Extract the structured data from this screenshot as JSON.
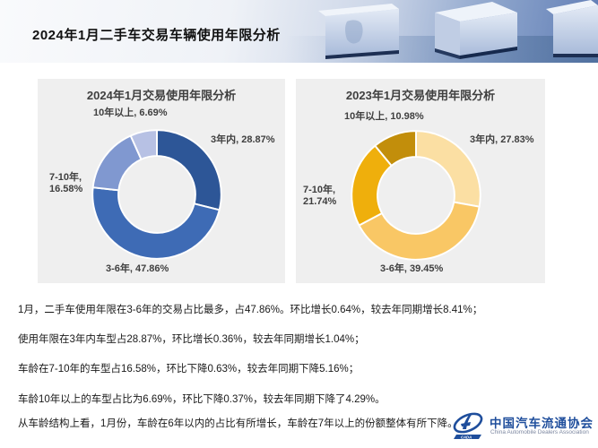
{
  "header": {
    "title": "2024年1月二手车交易车辆使用年限分析"
  },
  "chart_data": [
    {
      "type": "pie",
      "subtype": "donut",
      "title": "2024年1月交易使用年限分析",
      "categories": [
        "3年内",
        "3-6年",
        "7-10年",
        "10年以上"
      ],
      "values": [
        28.87,
        47.86,
        16.58,
        6.69
      ],
      "unit": "%",
      "colors": [
        "#2D5697",
        "#3E6BB5",
        "#8098D0",
        "#B7C1E4"
      ],
      "labels": [
        "3年内, 28.87%",
        "3-6年, 47.86%",
        "7-10年, 16.58%",
        "10年以上, 6.69%"
      ],
      "start_angle_deg": 0,
      "direction": "clockwise",
      "legend": "none"
    },
    {
      "type": "pie",
      "subtype": "donut",
      "title": "2023年1月交易使用年限分析",
      "categories": [
        "3年内",
        "3-6年",
        "7-10年",
        "10年以上"
      ],
      "values": [
        27.83,
        39.45,
        21.74,
        10.98
      ],
      "unit": "%",
      "colors": [
        "#FBDFA3",
        "#F9C765",
        "#EFAF0C",
        "#C28E0B"
      ],
      "labels": [
        "3年内, 27.83%",
        "3-6年, 39.45%",
        "7-10年, 21.74%",
        "10年以上, 10.98%"
      ],
      "start_angle_deg": 0,
      "direction": "clockwise",
      "legend": "none"
    }
  ],
  "summary": {
    "lines": [
      "1月，二手车使用年限在3-6年的交易占比最多，占47.86%。环比增长0.64%，较去年同期增长8.41%；",
      "使用年限在3年内车型占28.87%，环比增长0.36%，较去年同期增长1.04%；",
      "车龄在7-10年的车型占16.58%，环比下降0.63%，较去年同期下降5.16%；",
      "车龄10年以上的车型占比为6.69%，环比下降0.37%，较去年同期下降了4.29%。",
      "从车龄结构上看，1月份，车龄在6年以内的占比有所增长，车龄在7年以上的份额整体有所下降。"
    ]
  },
  "footer": {
    "org_cn": "中国汽车流通协会",
    "org_en": "China Automobile Dealers Association",
    "logo_acronym": "CADA",
    "logo_color": "#1F4E9C"
  }
}
